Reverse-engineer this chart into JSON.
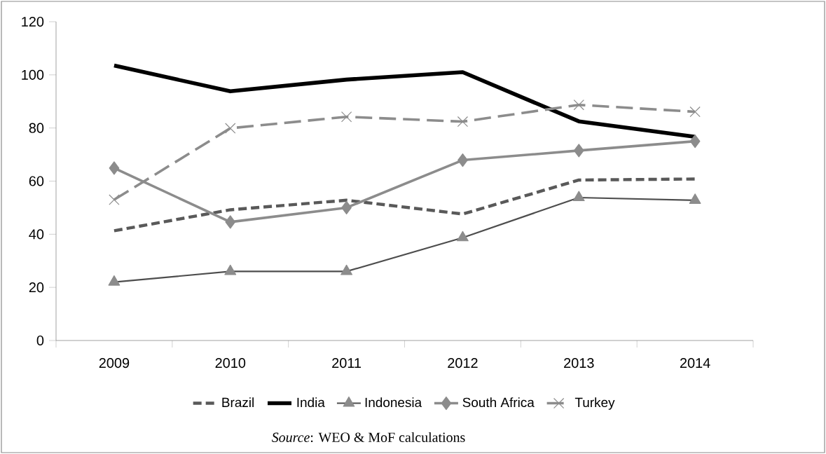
{
  "chart_data": {
    "type": "line",
    "categories": [
      "2009",
      "2010",
      "2011",
      "2012",
      "2013",
      "2014"
    ],
    "ylim": [
      0,
      120
    ],
    "yticks": [
      0,
      20,
      40,
      60,
      80,
      100,
      120
    ],
    "legend": "bottom",
    "series": [
      {
        "name": "Brazil",
        "color": "#595959",
        "line_style": "dashed",
        "marker": "none",
        "values": [
          41.3,
          49.2,
          52.8,
          47.6,
          60.4,
          60.8
        ]
      },
      {
        "name": "India",
        "color": "#000000",
        "line_style": "solid",
        "marker": "none",
        "values": [
          103.5,
          93.8,
          98.2,
          101,
          82.5,
          76.7
        ]
      },
      {
        "name": "Indonesia",
        "color": "#4d4d4d",
        "line_style": "solid",
        "marker": "triangle",
        "values": [
          22,
          26,
          26,
          38.7,
          53.8,
          52.8
        ]
      },
      {
        "name": "South Africa",
        "color": "#8c8c8c",
        "line_style": "solid",
        "marker": "diamond",
        "values": [
          64.9,
          44.6,
          50,
          67.9,
          71.5,
          75
        ]
      },
      {
        "name": "Turkey",
        "color": "#8c8c8c",
        "line_style": "dashed",
        "marker": "cross",
        "values": [
          53,
          79.9,
          84.2,
          82.4,
          88.7,
          86.1
        ]
      }
    ],
    "annotations": [
      "*Source*: WEO & MoF calculations"
    ]
  }
}
